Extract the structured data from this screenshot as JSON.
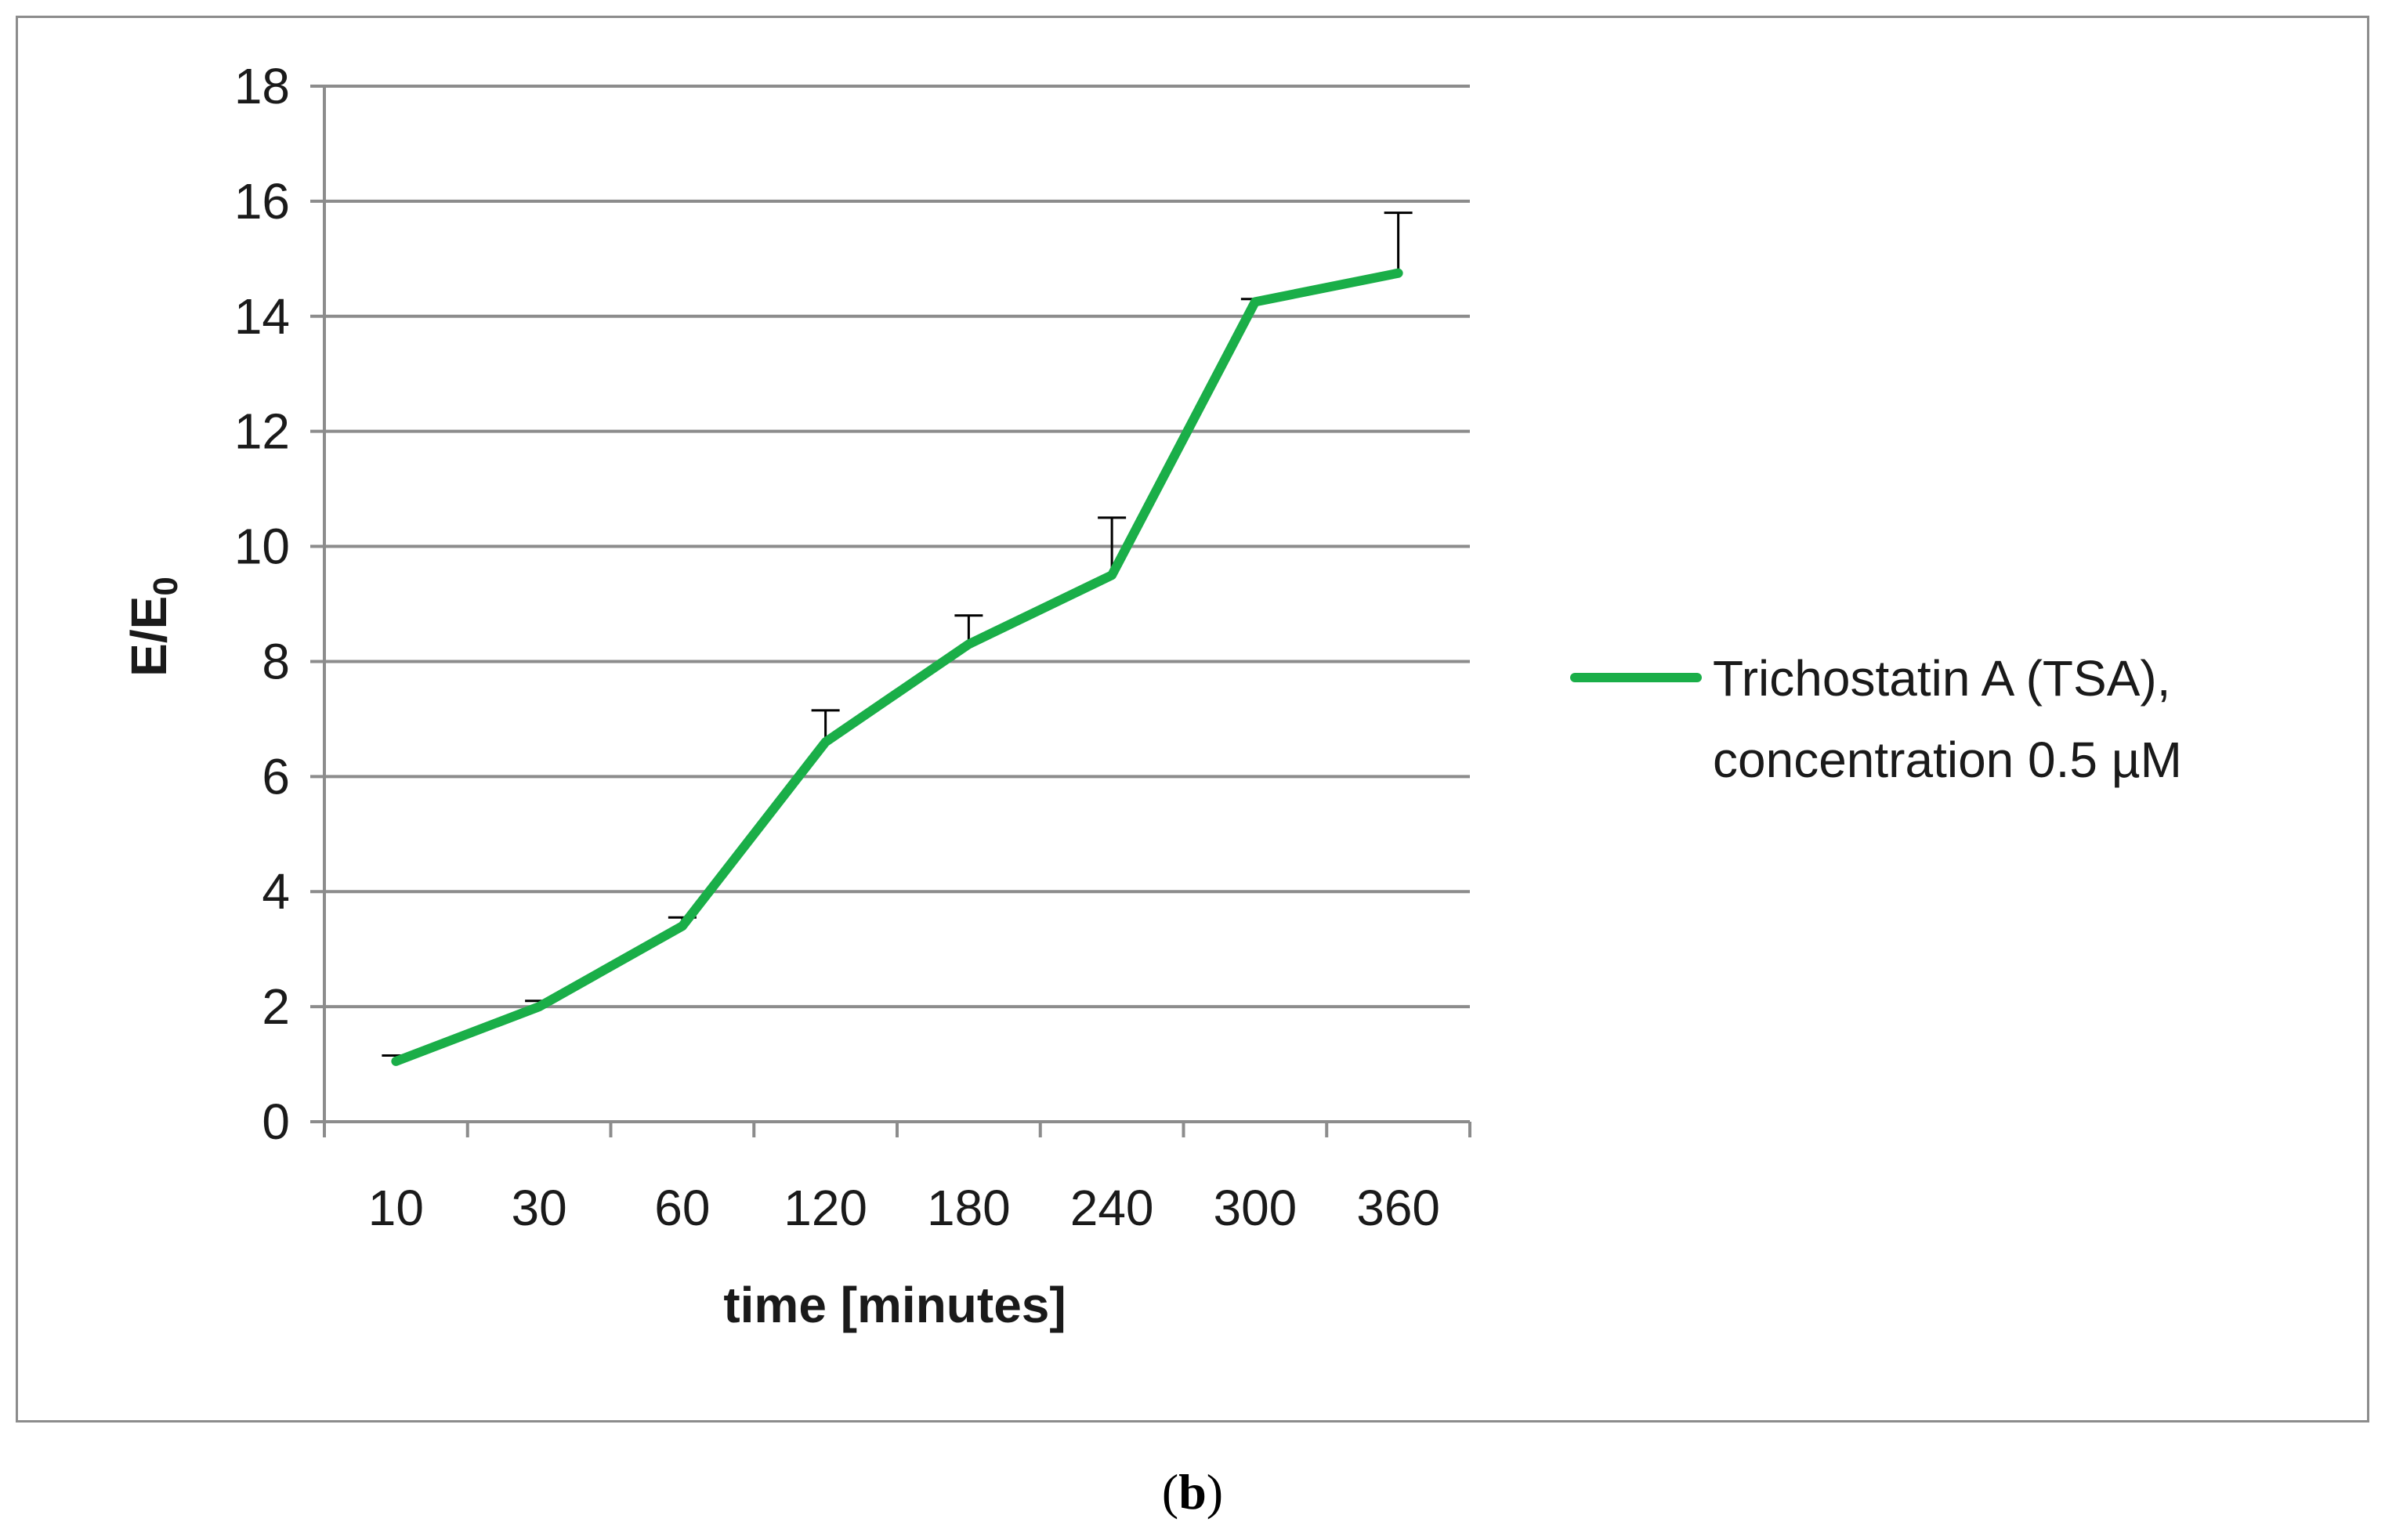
{
  "chart_data": {
    "type": "line",
    "categories": [
      "10",
      "30",
      "60",
      "120",
      "180",
      "240",
      "300",
      "360"
    ],
    "series": [
      {
        "name": "Trichostatin A (TSA), concentration 0.5 µM",
        "name_lines": [
          "Trichostatin A (TSA),",
          "concentration 0.5 µM"
        ],
        "values": [
          1.05,
          2.0,
          3.4,
          6.6,
          8.3,
          9.5,
          14.25,
          14.75
        ],
        "error_plus": [
          0.1,
          0.1,
          0.15,
          0.55,
          0.5,
          1.0,
          0.05,
          1.05
        ],
        "color": "#1aae48"
      }
    ],
    "xlabel": "time [minutes]",
    "ylabel_main": "E/E",
    "ylabel_sub": "0",
    "ylim": [
      0,
      18
    ],
    "yticks": [
      "0",
      "2",
      "4",
      "6",
      "8",
      "10",
      "12",
      "14",
      "16",
      "18"
    ],
    "grid": true,
    "legend_position": "right"
  },
  "panel_label": {
    "open": "(",
    "letter": "b",
    "close": ")"
  },
  "colors": {
    "gridline": "#8c8c8c",
    "axis": "#8c8c8c",
    "error_bar": "#000000",
    "frame": "#8c8c8c"
  }
}
